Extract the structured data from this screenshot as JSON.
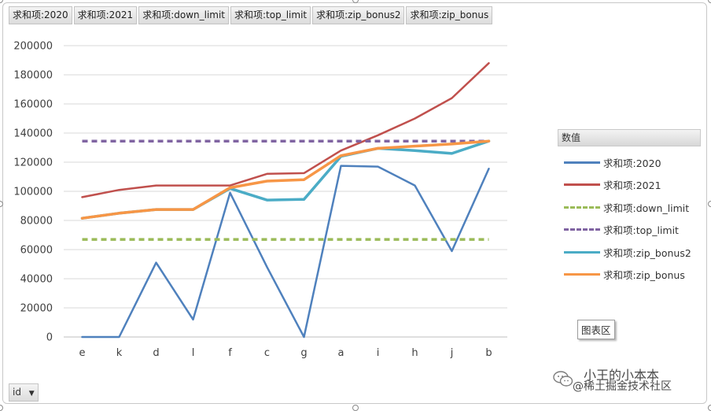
{
  "field_buttons": [
    "求和项:2020",
    "求和项:2021",
    "求和项:down_limit",
    "求和项:top_limit",
    "求和项:zip_bonus2",
    "求和项:zip_bonus"
  ],
  "legend_title": "数值",
  "area_label": "图表区",
  "row_field": {
    "label": "id",
    "icon": "chevron-down-icon"
  },
  "watermark": {
    "line1": "小王的小本本",
    "line2": "@稀土掘金技术社区",
    "icon": "wechat-icon"
  },
  "chart_data": {
    "type": "line",
    "title": "",
    "xlabel": "",
    "ylabel": "",
    "categories": [
      "e",
      "k",
      "d",
      "l",
      "f",
      "c",
      "g",
      "a",
      "i",
      "h",
      "j",
      "b"
    ],
    "ylim": [
      0,
      200000
    ],
    "yticks": [
      0,
      20000,
      40000,
      60000,
      80000,
      100000,
      120000,
      140000,
      160000,
      180000,
      200000
    ],
    "grid": true,
    "legend_position": "right",
    "series": [
      {
        "name": "求和项:2020",
        "color": "#4f81bd",
        "dash": false,
        "width": 2.5,
        "values": [
          0,
          0,
          51000,
          12000,
          99000,
          48000,
          0,
          117500,
          117000,
          104000,
          59000,
          115500
        ]
      },
      {
        "name": "求和项:2021",
        "color": "#c0504d",
        "dash": false,
        "width": 2.5,
        "values": [
          96000,
          101000,
          104000,
          104000,
          104000,
          112000,
          112500,
          128000,
          138500,
          150000,
          164000,
          188000
        ]
      },
      {
        "name": "求和项:down_limit",
        "color": "#9bbb59",
        "dash": true,
        "width": 3.5,
        "values": [
          67000,
          67000,
          67000,
          67000,
          67000,
          67000,
          67000,
          67000,
          67000,
          67000,
          67000,
          67000
        ]
      },
      {
        "name": "求和项:top_limit",
        "color": "#8064a2",
        "dash": true,
        "width": 3.5,
        "values": [
          134500,
          134500,
          134500,
          134500,
          134500,
          134500,
          134500,
          134500,
          134500,
          134500,
          134500,
          134500
        ]
      },
      {
        "name": "求和项:zip_bonus2",
        "color": "#4bacc6",
        "dash": false,
        "width": 3.5,
        "values": [
          81500,
          85000,
          87500,
          87500,
          102000,
          94000,
          94500,
          124000,
          129500,
          128000,
          126000,
          134500
        ]
      },
      {
        "name": "求和项:zip_bonus",
        "color": "#f79646",
        "dash": false,
        "width": 3.5,
        "values": [
          81500,
          85000,
          87500,
          87500,
          102500,
          107000,
          108000,
          124500,
          129500,
          131000,
          132500,
          134500
        ]
      }
    ]
  }
}
